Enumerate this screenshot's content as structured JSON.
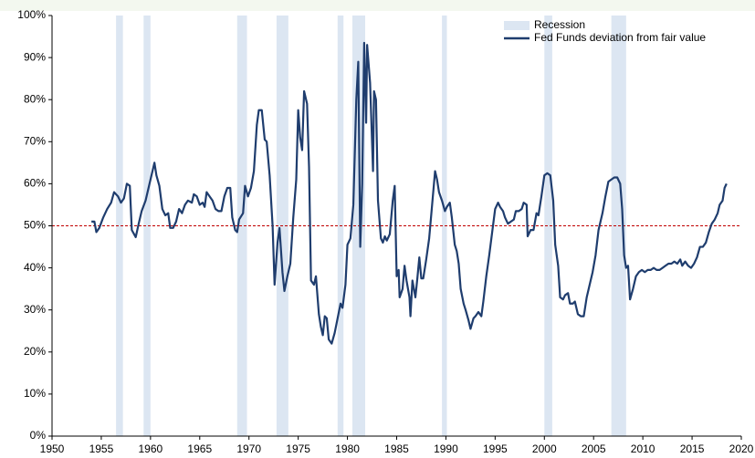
{
  "chart_data": {
    "type": "line",
    "xlim": [
      1950,
      2020
    ],
    "xticks": [
      1950,
      1955,
      1960,
      1965,
      1970,
      1975,
      1980,
      1985,
      1990,
      1995,
      2000,
      2005,
      2010,
      2015,
      2020
    ],
    "ylim": [
      0,
      100
    ],
    "yticks": [
      {
        "value": 0,
        "label": "0%"
      },
      {
        "value": 10,
        "label": "10%"
      },
      {
        "value": 20,
        "label": "20%"
      },
      {
        "value": 30,
        "label": "30%"
      },
      {
        "value": 40,
        "label": "40%"
      },
      {
        "value": 50,
        "label": "50%"
      },
      {
        "value": 60,
        "label": "60%"
      },
      {
        "value": 70,
        "label": "70%"
      },
      {
        "value": 80,
        "label": "80%"
      },
      {
        "value": 90,
        "label": "90%"
      },
      {
        "value": 100,
        "label": "100%"
      }
    ],
    "grid": false,
    "legend": "top-right",
    "recessions": {
      "name": "Recession",
      "color": "#dce6f2",
      "ranges": [
        [
          1956.5,
          1957.2
        ],
        [
          1959.3,
          1960.0
        ],
        [
          1968.8,
          1969.8
        ],
        [
          1972.8,
          1974.0
        ],
        [
          1979.0,
          1979.6
        ],
        [
          1980.5,
          1981.8
        ],
        [
          1989.6,
          1990.1
        ],
        [
          2000.0,
          2000.8
        ],
        [
          2006.8,
          2008.3
        ]
      ]
    },
    "reference_line": {
      "value": 50,
      "color": "#c00000"
    },
    "x": [
      1954.0,
      1954.3,
      1954.5,
      1954.8,
      1955.2,
      1955.6,
      1956.0,
      1956.3,
      1956.7,
      1957.0,
      1957.3,
      1957.6,
      1957.9,
      1958.1,
      1958.5,
      1958.8,
      1959.1,
      1959.5,
      1959.9,
      1960.2,
      1960.4,
      1960.6,
      1960.9,
      1961.2,
      1961.5,
      1961.8,
      1962.0,
      1962.3,
      1962.6,
      1962.9,
      1963.2,
      1963.5,
      1963.8,
      1964.2,
      1964.4,
      1964.7,
      1965.0,
      1965.3,
      1965.5,
      1965.7,
      1966.0,
      1966.3,
      1966.6,
      1966.9,
      1967.2,
      1967.5,
      1967.8,
      1968.1,
      1968.3,
      1968.6,
      1968.8,
      1969.0,
      1969.4,
      1969.6,
      1969.9,
      1970.2,
      1970.5,
      1970.8,
      1971.0,
      1971.3,
      1971.6,
      1971.8,
      1972.1,
      1972.4,
      1972.6,
      1972.9,
      1973.1,
      1973.4,
      1973.6,
      1973.9,
      1974.2,
      1974.5,
      1974.8,
      1975.0,
      1975.2,
      1975.4,
      1975.6,
      1975.9,
      1976.1,
      1976.3,
      1976.6,
      1976.8,
      1977.1,
      1977.3,
      1977.5,
      1977.7,
      1977.9,
      1978.1,
      1978.4,
      1978.7,
      1979.0,
      1979.3,
      1979.5,
      1979.8,
      1980.0,
      1980.3,
      1980.6,
      1980.9,
      1981.1,
      1981.3,
      1981.5,
      1981.7,
      1981.9,
      1982.0,
      1982.3,
      1982.6,
      1982.7,
      1982.9,
      1983.1,
      1983.4,
      1983.6,
      1983.8,
      1984.0,
      1984.3,
      1984.6,
      1984.8,
      1985.0,
      1985.2,
      1985.3,
      1985.6,
      1985.8,
      1986.0,
      1986.3,
      1986.4,
      1986.6,
      1986.9,
      1987.1,
      1987.3,
      1987.5,
      1987.7,
      1988.0,
      1988.3,
      1988.6,
      1988.9,
      1989.1,
      1989.3,
      1989.6,
      1989.9,
      1990.1,
      1990.4,
      1990.6,
      1990.9,
      1991.1,
      1991.3,
      1991.5,
      1991.8,
      1992.0,
      1992.3,
      1992.5,
      1992.8,
      1993.0,
      1993.3,
      1993.6,
      1993.8,
      1994.1,
      1994.4,
      1994.7,
      1995.0,
      1995.3,
      1995.5,
      1995.8,
      1996.0,
      1996.3,
      1996.6,
      1996.9,
      1997.1,
      1997.4,
      1997.7,
      1997.9,
      1998.2,
      1998.3,
      1998.6,
      1998.9,
      1999.2,
      1999.4,
      1999.7,
      2000.0,
      2000.3,
      2000.6,
      2000.9,
      2001.1,
      2001.4,
      2001.6,
      2001.9,
      2002.1,
      2002.4,
      2002.6,
      2002.9,
      2003.1,
      2003.4,
      2003.7,
      2004.0,
      2004.3,
      2004.6,
      2004.9,
      2005.2,
      2005.5,
      2005.9,
      2006.2,
      2006.5,
      2006.8,
      2007.1,
      2007.4,
      2007.7,
      2007.9,
      2008.1,
      2008.3,
      2008.5,
      2008.7,
      2009.0,
      2009.3,
      2009.6,
      2009.9,
      2010.2,
      2010.5,
      2010.8,
      2011.1,
      2011.4,
      2011.7,
      2012.0,
      2012.3,
      2012.6,
      2012.9,
      2013.2,
      2013.5,
      2013.8,
      2014.0,
      2014.3,
      2014.6,
      2014.9,
      2015.2,
      2015.5,
      2015.8,
      2016.1,
      2016.4,
      2016.7,
      2017.0,
      2017.3,
      2017.6,
      2017.8,
      2018.1,
      2018.3,
      2018.5
    ],
    "series": [
      {
        "name": "Fed Funds deviation from fair value",
        "color": "#1f3d6e",
        "values": [
          51,
          51,
          48.5,
          49.5,
          52,
          54,
          55.5,
          58,
          57,
          55.5,
          56.5,
          60,
          59.5,
          49,
          47.3,
          50.5,
          53.5,
          56,
          60,
          63,
          65,
          62,
          59.5,
          54,
          52.5,
          53,
          49.5,
          49.5,
          51,
          54,
          53,
          55,
          56,
          55.5,
          57.5,
          57,
          55,
          55.5,
          54.5,
          58,
          57,
          56,
          54,
          53.5,
          53.5,
          57,
          59,
          59,
          52,
          49,
          48.5,
          51.5,
          53,
          59.5,
          57,
          59,
          63,
          74,
          77.5,
          77.5,
          70.5,
          70,
          62,
          50,
          36,
          46,
          49.5,
          39,
          34.5,
          38,
          41,
          52,
          61,
          77.5,
          71,
          68,
          82,
          79,
          64,
          37,
          36,
          38,
          29,
          26,
          24,
          28.5,
          28,
          23,
          22,
          24.5,
          28,
          31.5,
          30.5,
          36,
          45.5,
          47,
          55,
          80,
          89,
          45,
          60,
          93.5,
          74.5,
          93,
          84,
          63,
          82,
          80,
          56,
          47,
          46,
          47.5,
          46.5,
          48,
          56,
          59.5,
          38,
          39.5,
          33,
          35,
          40.5,
          37,
          33,
          28.5,
          37,
          33,
          37.5,
          42.5,
          37.5,
          37.5,
          42,
          47,
          55,
          63,
          61,
          58,
          56,
          53.5,
          54.5,
          55.5,
          52,
          45.5,
          44,
          41,
          35,
          31.5,
          30,
          27.5,
          25.5,
          28,
          28.5,
          29.5,
          28.5,
          32,
          38,
          43,
          48.5,
          54,
          55.5,
          54.5,
          53.5,
          52,
          50.5,
          51,
          51.5,
          53.5,
          53.5,
          54,
          55.5,
          55,
          47.5,
          49,
          49,
          53,
          52.5,
          57,
          62,
          62.5,
          62,
          56,
          45.5,
          40.5,
          33,
          32.5,
          33.5,
          34,
          31.5,
          31.5,
          32,
          29,
          28.5,
          28.5,
          33,
          36,
          39,
          43,
          49,
          53,
          57,
          60.5,
          61,
          61.5,
          61.5,
          60,
          54,
          43,
          40,
          40.5,
          32.5,
          35,
          38,
          39,
          39.5,
          39,
          39.5,
          39.5,
          40,
          39.5,
          39.5,
          40,
          40.5,
          41,
          41,
          41.5,
          41,
          42,
          40.5,
          41.5,
          40.5,
          40,
          41,
          42.5,
          45,
          45,
          46,
          48.5,
          50.5,
          51.5,
          53,
          55,
          56,
          59,
          60
        ]
      }
    ]
  }
}
